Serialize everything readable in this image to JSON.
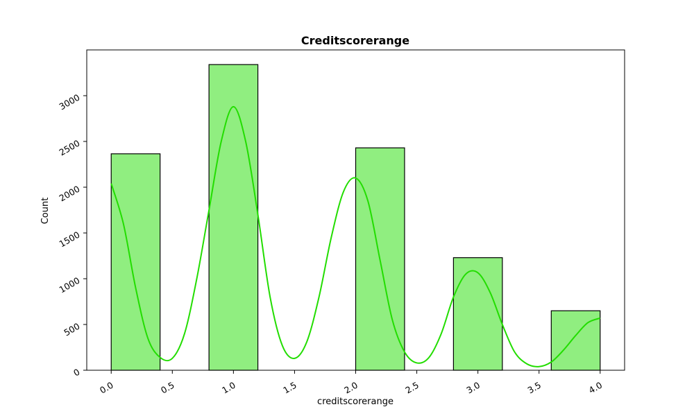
{
  "chart_data": {
    "type": "bar",
    "title": "Creditscorerange",
    "xlabel": "creditscorerange",
    "ylabel": "Count",
    "xlim": [
      -0.2,
      4.2
    ],
    "ylim": [
      0,
      3500
    ],
    "x_ticks": [
      "0.0",
      "0.5",
      "1.0",
      "1.5",
      "2.0",
      "2.5",
      "3.0",
      "3.5",
      "4.0"
    ],
    "y_ticks": [
      "0",
      "500",
      "1000",
      "1500",
      "2000",
      "2500",
      "3000"
    ],
    "bin_width": 0.4,
    "bars": [
      {
        "x_start": 0.0,
        "count": 2365
      },
      {
        "x_start": 0.8,
        "count": 3340
      },
      {
        "x_start": 2.0,
        "count": 2430
      },
      {
        "x_start": 2.8,
        "count": 1230
      },
      {
        "x_start": 3.6,
        "count": 650
      }
    ],
    "kde_points": [
      [
        0.0,
        2040
      ],
      [
        0.1,
        1600
      ],
      [
        0.2,
        900
      ],
      [
        0.3,
        350
      ],
      [
        0.4,
        140
      ],
      [
        0.5,
        130
      ],
      [
        0.6,
        400
      ],
      [
        0.7,
        1000
      ],
      [
        0.8,
        1750
      ],
      [
        0.9,
        2500
      ],
      [
        1.0,
        2880
      ],
      [
        1.1,
        2500
      ],
      [
        1.2,
        1700
      ],
      [
        1.3,
        800
      ],
      [
        1.4,
        270
      ],
      [
        1.5,
        130
      ],
      [
        1.6,
        310
      ],
      [
        1.7,
        800
      ],
      [
        1.8,
        1450
      ],
      [
        1.9,
        1950
      ],
      [
        2.0,
        2100
      ],
      [
        2.1,
        1850
      ],
      [
        2.2,
        1200
      ],
      [
        2.3,
        550
      ],
      [
        2.4,
        200
      ],
      [
        2.5,
        80
      ],
      [
        2.6,
        140
      ],
      [
        2.7,
        400
      ],
      [
        2.8,
        800
      ],
      [
        2.9,
        1050
      ],
      [
        3.0,
        1065
      ],
      [
        3.1,
        850
      ],
      [
        3.2,
        500
      ],
      [
        3.3,
        200
      ],
      [
        3.4,
        70
      ],
      [
        3.5,
        40
      ],
      [
        3.6,
        90
      ],
      [
        3.7,
        220
      ],
      [
        3.8,
        380
      ],
      [
        3.9,
        520
      ],
      [
        4.0,
        570
      ]
    ],
    "bar_color": "#90ee80",
    "kde_color": "#22dd00",
    "grid": false,
    "tick_rotation": 30
  }
}
